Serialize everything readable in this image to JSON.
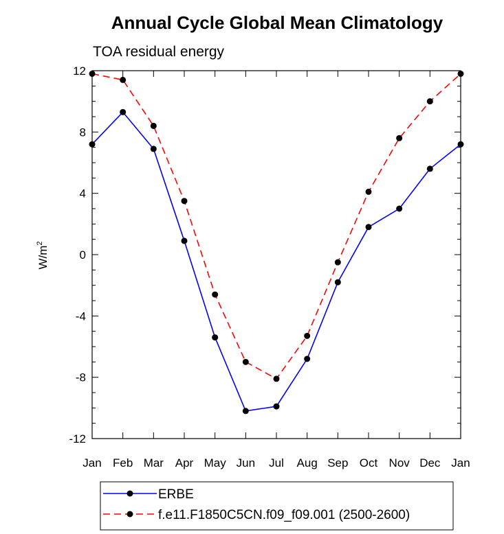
{
  "chart_data": {
    "type": "line",
    "title": "Annual Cycle Global Mean Climatology",
    "subtitle": "TOA residual energy",
    "xlabel": "",
    "ylabel": "W/m",
    "ylabel_superscript": "2",
    "categories": [
      "Jan",
      "Feb",
      "Mar",
      "Apr",
      "May",
      "Jun",
      "Jul",
      "Aug",
      "Sep",
      "Oct",
      "Nov",
      "Dec",
      "Jan"
    ],
    "ylim": [
      -12,
      12
    ],
    "yticks": [
      -12,
      -8,
      -4,
      0,
      4,
      8,
      12
    ],
    "ytick_labels": [
      "-12",
      "-8",
      "-4",
      "0",
      "4",
      "8",
      "12"
    ],
    "grid": false,
    "legend_position": "bottom",
    "series": [
      {
        "name": "ERBE",
        "color": "#0000ff",
        "style": "solid",
        "marker": "filled-circle",
        "values": [
          7.2,
          9.3,
          6.9,
          0.9,
          -5.4,
          -10.2,
          -9.9,
          -6.8,
          -1.8,
          1.8,
          3.0,
          5.6,
          7.2
        ]
      },
      {
        "name": "f.e11.F1850C5CN.f09_f09.001 (2500-2600)",
        "color": "#ff0000",
        "style": "dashed",
        "marker": "filled-circle",
        "values": [
          11.8,
          11.4,
          8.4,
          3.5,
          -2.6,
          -7.0,
          -8.1,
          -5.3,
          -0.5,
          4.1,
          7.6,
          10.0,
          11.8
        ]
      }
    ]
  }
}
